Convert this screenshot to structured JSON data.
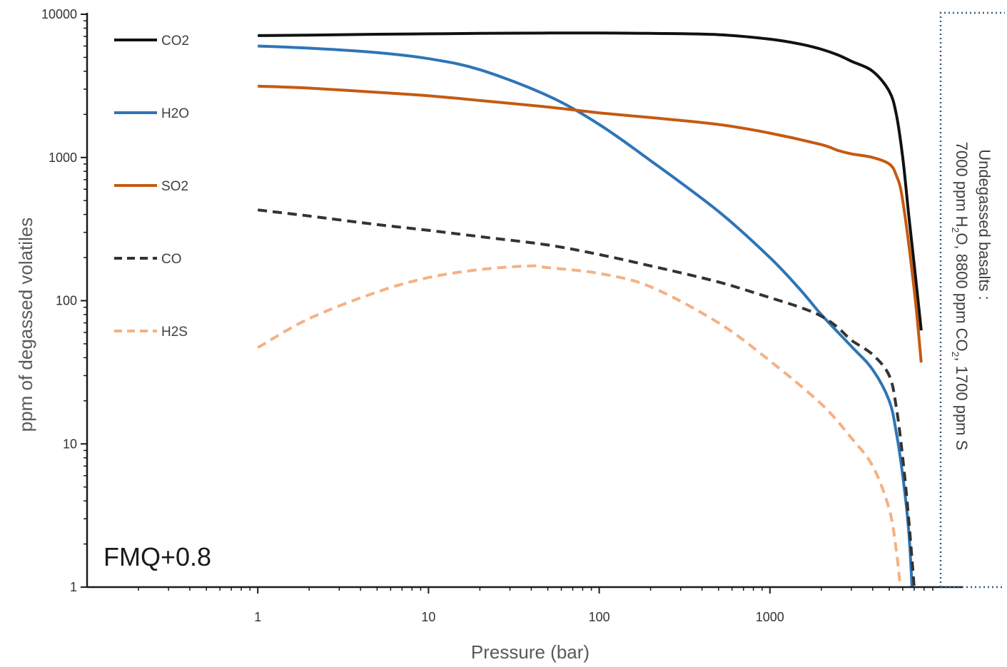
{
  "chart_data": {
    "type": "line",
    "xlabel": "Pressure (bar)",
    "ylabel": "ppm of degassed volatiles",
    "xscale": "log",
    "yscale": "log",
    "xlim": [
      0.1,
      10000
    ],
    "ylim": [
      1,
      10000
    ],
    "xticks": [
      1,
      10,
      100,
      1000
    ],
    "xtick_labels": [
      "1",
      "10",
      "100",
      "1000"
    ],
    "yticks": [
      1,
      10,
      100,
      1000,
      10000
    ],
    "ytick_labels": [
      "1",
      "10",
      "100",
      "1000",
      "10000"
    ],
    "grid": false,
    "legend_position": "top-left",
    "panel_label": "FMQ+0.8",
    "annotation": {
      "line1": "Undegassed basalts :",
      "line2_parts": [
        "7000 ppm H",
        "2",
        "O, 8800 ppm CO",
        "2",
        ", 1700 ppm S"
      ]
    },
    "series": [
      {
        "name": "CO2",
        "color": "#111111",
        "dash": "solid",
        "x": [
          1,
          2,
          5,
          10,
          20,
          50,
          100,
          200,
          500,
          1000,
          1500,
          2000,
          2500,
          3000,
          4000,
          5000,
          5500,
          6000,
          6500,
          7000,
          7700
        ],
        "y": [
          7100,
          7150,
          7250,
          7300,
          7350,
          7400,
          7400,
          7350,
          7200,
          6700,
          6200,
          5700,
          5200,
          4700,
          4000,
          2900,
          2000,
          1000,
          400,
          180,
          62
        ]
      },
      {
        "name": "H2O",
        "color": "#2e75b6",
        "dash": "solid",
        "x": [
          1,
          2,
          5,
          10,
          20,
          50,
          100,
          200,
          500,
          1000,
          1500,
          2000,
          3000,
          4000,
          5000,
          5500,
          6000,
          6500,
          6800
        ],
        "y": [
          6000,
          5800,
          5400,
          4900,
          4100,
          2700,
          1700,
          950,
          420,
          200,
          120,
          80,
          48,
          33,
          20,
          12,
          6,
          2.5,
          1
        ]
      },
      {
        "name": "SO2",
        "color": "#c55a11",
        "dash": "solid",
        "x": [
          1,
          2,
          5,
          10,
          20,
          50,
          100,
          200,
          500,
          1000,
          2000,
          2500,
          3000,
          4000,
          5000,
          5500,
          6000,
          7000,
          7700
        ],
        "y": [
          3150,
          3050,
          2850,
          2700,
          2500,
          2250,
          2050,
          1900,
          1700,
          1480,
          1230,
          1120,
          1060,
          1000,
          900,
          750,
          500,
          120,
          37
        ]
      },
      {
        "name": "CO",
        "color": "#333333",
        "dash": "dashed",
        "x": [
          1,
          2,
          5,
          10,
          20,
          50,
          100,
          200,
          500,
          1000,
          1500,
          2000,
          2500,
          3000,
          4000,
          5000,
          5500,
          6000,
          6500,
          7000
        ],
        "y": [
          430,
          390,
          340,
          310,
          280,
          245,
          210,
          175,
          135,
          105,
          90,
          78,
          65,
          53,
          42,
          30,
          18,
          8,
          3,
          1
        ]
      },
      {
        "name": "H2S",
        "color": "#f4b183",
        "dash": "dashed",
        "x": [
          1,
          2,
          5,
          10,
          20,
          40,
          50,
          100,
          200,
          500,
          1000,
          2000,
          3000,
          4000,
          5000,
          5500,
          5800
        ],
        "y": [
          47,
          75,
          115,
          145,
          165,
          175,
          170,
          155,
          125,
          70,
          38,
          19,
          11,
          7,
          3.5,
          1.8,
          1
        ]
      }
    ]
  }
}
